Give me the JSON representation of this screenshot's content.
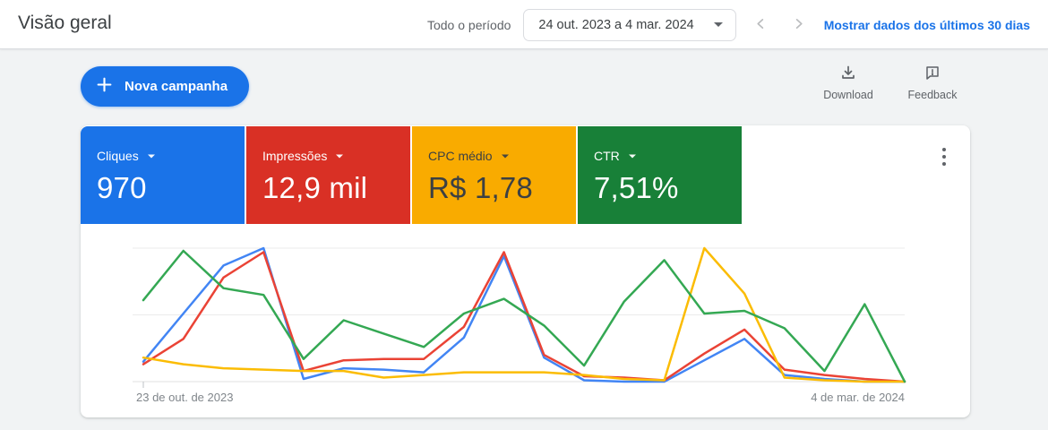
{
  "header": {
    "title": "Visão geral",
    "period_label": "Todo o período",
    "date_range": "24 out. 2023 a 4 mar. 2024",
    "show_last_30_link": "Mostrar dados dos últimos 30 dias"
  },
  "toolbar": {
    "new_campaign_label": "Nova campanha",
    "download_label": "Download",
    "feedback_label": "Feedback"
  },
  "scorecards": [
    {
      "label": "Cliques",
      "value": "970",
      "color": "#1a73e8",
      "text_color": "#ffffff"
    },
    {
      "label": "Impressões",
      "value": "12,9 mil",
      "color": "#d93025",
      "text_color": "#ffffff"
    },
    {
      "label": "CPC médio",
      "value": "R$ 1,78",
      "color": "#f9ab00",
      "text_color": "#3c4043"
    },
    {
      "label": "CTR",
      "value": "7,51%",
      "color": "#188038",
      "text_color": "#ffffff"
    }
  ],
  "chart_data": {
    "type": "line",
    "x_start_label": "23 de out. de 2023",
    "x_end_label": "4 de mar. de 2024",
    "x_points": 20,
    "grid": true,
    "ylim": [
      0,
      100
    ],
    "series": [
      {
        "name": "Cliques",
        "color": "#4285f4",
        "values": [
          15,
          51,
          87,
          100,
          2,
          10,
          9,
          7,
          33,
          94,
          18,
          1,
          0,
          0,
          16,
          32,
          5,
          2,
          0,
          0
        ]
      },
      {
        "name": "Impressões",
        "color": "#ea4335",
        "values": [
          13,
          32,
          78,
          97,
          8,
          16,
          17,
          17,
          41,
          97,
          20,
          4,
          3,
          1,
          21,
          39,
          9,
          5,
          2,
          0
        ]
      },
      {
        "name": "CPC médio",
        "color": "#fbbc04",
        "values": [
          18,
          13,
          10,
          9,
          8,
          8,
          3,
          5,
          7,
          7,
          7,
          5,
          2,
          1,
          100,
          66,
          3,
          1,
          0,
          0
        ]
      },
      {
        "name": "CTR",
        "color": "#34a853",
        "values": [
          61,
          98,
          70,
          65,
          17,
          46,
          36,
          26,
          51,
          62,
          42,
          12,
          60,
          91,
          51,
          53,
          40,
          8,
          58,
          0
        ]
      }
    ]
  }
}
